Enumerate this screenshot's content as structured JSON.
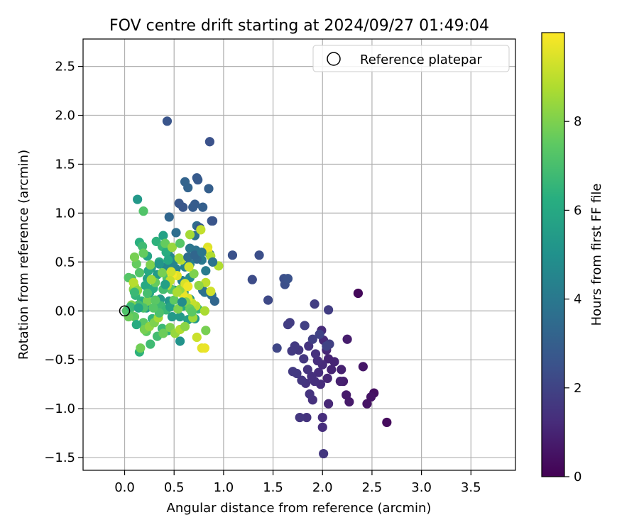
{
  "chart_data": {
    "type": "scatter",
    "title": "FOV centre drift starting at 2024/09/27 01:49:04",
    "xlabel": "Angular distance from reference (arcmin)",
    "ylabel": "Rotation from reference (arcmin)",
    "xlim": [
      -0.42,
      3.95
    ],
    "ylim": [
      -1.63,
      2.78
    ],
    "xticks": [
      0.0,
      0.5,
      1.0,
      1.5,
      2.0,
      2.5,
      3.0,
      3.5
    ],
    "xtick_labels": [
      "0.0",
      "0.5",
      "1.0",
      "1.5",
      "2.0",
      "2.5",
      "3.0",
      "3.5"
    ],
    "yticks": [
      -1.5,
      -1.0,
      -0.5,
      0.0,
      0.5,
      1.0,
      1.5,
      2.0,
      2.5
    ],
    "ytick_labels": [
      "−1.5",
      "−1.0",
      "−0.5",
      "0.0",
      "0.5",
      "1.0",
      "1.5",
      "2.0",
      "2.5"
    ],
    "grid": true,
    "legend": {
      "placement": "top-right",
      "entries": [
        "Reference platepar"
      ]
    },
    "reference_point": {
      "x": 0.0,
      "y": 0.0
    },
    "colorbar": {
      "label": "Hours from first FF file",
      "colormap": "viridis",
      "range": [
        0,
        10
      ],
      "ticks": [
        0,
        2,
        4,
        6,
        8
      ],
      "tick_labels": [
        "0",
        "2",
        "4",
        "6",
        "8"
      ]
    },
    "points": [
      [
        2.36,
        0.18,
        0.2
      ],
      [
        2.65,
        -1.14,
        0.3
      ],
      [
        2.52,
        -0.84,
        0.4
      ],
      [
        2.49,
        -0.88,
        0.5
      ],
      [
        2.45,
        -0.95,
        0.5
      ],
      [
        2.41,
        -0.57,
        0.6
      ],
      [
        2.27,
        -0.93,
        0.7
      ],
      [
        2.24,
        -0.86,
        0.7
      ],
      [
        2.25,
        -0.29,
        0.8
      ],
      [
        2.21,
        -0.72,
        0.8
      ],
      [
        2.18,
        -0.72,
        0.9
      ],
      [
        2.19,
        -0.6,
        0.9
      ],
      [
        2.12,
        -0.52,
        1.0
      ],
      [
        2.09,
        -0.6,
        1.0
      ],
      [
        2.06,
        -0.49,
        1.0
      ],
      [
        2.05,
        -0.69,
        1.1
      ],
      [
        2.06,
        -0.95,
        1.1
      ],
      [
        2.04,
        -0.4,
        1.1
      ],
      [
        2.01,
        -0.3,
        1.2
      ],
      [
        2.0,
        -0.55,
        1.2
      ],
      [
        1.99,
        -0.2,
        1.2
      ],
      [
        2.0,
        -1.19,
        1.3
      ],
      [
        2.0,
        -1.09,
        1.3
      ],
      [
        1.98,
        -0.75,
        1.3
      ],
      [
        1.96,
        -0.63,
        1.3
      ],
      [
        1.95,
        -0.51,
        1.3
      ],
      [
        1.93,
        -0.44,
        1.4
      ],
      [
        1.92,
        -0.72,
        1.4
      ],
      [
        1.9,
        -0.91,
        1.4
      ],
      [
        1.89,
        -0.67,
        1.4
      ],
      [
        1.87,
        -0.85,
        1.5
      ],
      [
        1.86,
        -0.36,
        1.5
      ],
      [
        1.85,
        -0.6,
        1.5
      ],
      [
        1.84,
        -1.09,
        1.5
      ],
      [
        1.83,
        -0.74,
        1.5
      ],
      [
        1.81,
        -0.49,
        1.6
      ],
      [
        1.79,
        -0.71,
        1.6
      ],
      [
        1.77,
        -1.09,
        1.6
      ],
      [
        1.76,
        -0.4,
        1.6
      ],
      [
        1.74,
        -0.64,
        1.7
      ],
      [
        1.72,
        -0.36,
        1.7
      ],
      [
        1.7,
        -0.62,
        1.7
      ],
      [
        1.69,
        -0.41,
        1.7
      ],
      [
        1.67,
        -0.12,
        1.8
      ],
      [
        1.65,
        -0.14,
        1.8
      ],
      [
        1.92,
        0.07,
        1.8
      ],
      [
        2.06,
        0.01,
        1.8
      ],
      [
        2.01,
        -1.46,
        1.6
      ],
      [
        2.07,
        -0.34,
        1.9
      ],
      [
        1.9,
        -0.29,
        1.9
      ],
      [
        1.82,
        -0.15,
        1.9
      ],
      [
        1.97,
        -0.24,
        2.0
      ],
      [
        2.04,
        -0.36,
        2.0
      ],
      [
        1.54,
        -0.38,
        2.1
      ],
      [
        1.45,
        0.11,
        2.2
      ],
      [
        1.29,
        0.32,
        2.3
      ],
      [
        1.36,
        0.57,
        2.4
      ],
      [
        1.09,
        0.57,
        2.5
      ],
      [
        1.61,
        0.33,
        2.4
      ],
      [
        1.62,
        0.27,
        2.4
      ],
      [
        1.65,
        0.33,
        2.5
      ],
      [
        0.43,
        1.94,
        2.6
      ],
      [
        0.86,
        1.73,
        2.5
      ],
      [
        0.73,
        1.36,
        2.8
      ],
      [
        0.74,
        1.34,
        2.8
      ],
      [
        0.61,
        1.32,
        3.2
      ],
      [
        0.64,
        1.26,
        3.2
      ],
      [
        0.85,
        1.25,
        3.0
      ],
      [
        0.55,
        1.1,
        2.7
      ],
      [
        0.59,
        1.06,
        2.7
      ],
      [
        0.71,
        1.09,
        2.9
      ],
      [
        0.69,
        1.06,
        2.9
      ],
      [
        0.79,
        1.06,
        3.0
      ],
      [
        0.45,
        0.96,
        3.3
      ],
      [
        0.88,
        0.92,
        2.6
      ],
      [
        0.89,
        0.92,
        2.6
      ],
      [
        0.73,
        0.87,
        3.5
      ],
      [
        0.76,
        0.85,
        2.8
      ],
      [
        0.52,
        0.8,
        3.6
      ],
      [
        0.71,
        0.77,
        3.7
      ],
      [
        0.66,
        0.64,
        3.9
      ],
      [
        0.72,
        0.62,
        3.8
      ],
      [
        0.86,
        0.58,
        3.9
      ],
      [
        0.78,
        0.52,
        4.0
      ],
      [
        0.73,
        0.53,
        3.4
      ],
      [
        0.82,
        0.41,
        4.1
      ],
      [
        0.66,
        0.48,
        4.2
      ],
      [
        0.61,
        0.45,
        4.4
      ],
      [
        0.52,
        0.43,
        4.3
      ],
      [
        0.46,
        0.55,
        4.6
      ],
      [
        0.45,
        0.63,
        4.7
      ],
      [
        0.49,
        0.49,
        4.5
      ],
      [
        0.42,
        0.45,
        4.6
      ],
      [
        0.58,
        0.31,
        4.3
      ],
      [
        0.66,
        0.34,
        4.8
      ],
      [
        0.81,
        0.19,
        3.9
      ],
      [
        0.88,
        0.16,
        3.6
      ],
      [
        0.79,
        0.21,
        3.7
      ],
      [
        0.6,
        0.19,
        4.9
      ],
      [
        0.66,
        0.12,
        5.0
      ],
      [
        0.51,
        0.21,
        5.1
      ],
      [
        0.45,
        0.1,
        5.2
      ],
      [
        0.36,
        0.12,
        5.3
      ],
      [
        0.33,
        0.37,
        5.4
      ],
      [
        0.27,
        0.44,
        5.5
      ],
      [
        0.23,
        0.33,
        5.6
      ],
      [
        0.13,
        1.14,
        5.3
      ],
      [
        0.19,
        1.02,
        7.2
      ],
      [
        0.15,
        0.7,
        6.3
      ],
      [
        0.18,
        0.66,
        6.8
      ],
      [
        0.23,
        0.56,
        5.8
      ],
      [
        0.32,
        0.71,
        6.4
      ],
      [
        0.39,
        0.77,
        5.7
      ],
      [
        0.38,
        0.66,
        6.6
      ],
      [
        0.42,
        0.6,
        6.2
      ],
      [
        0.44,
        0.52,
        6.0
      ],
      [
        0.35,
        0.5,
        6.1
      ],
      [
        0.12,
        0.48,
        7.6
      ],
      [
        0.1,
        0.55,
        7.9
      ],
      [
        0.21,
        0.26,
        6.0
      ],
      [
        0.25,
        0.18,
        5.8
      ],
      [
        0.29,
        0.23,
        6.2
      ],
      [
        0.17,
        0.1,
        6.4
      ],
      [
        0.11,
        0.16,
        6.5
      ],
      [
        0.07,
        0.33,
        7.0
      ],
      [
        0.04,
        0.34,
        7.3
      ],
      [
        0.19,
        0.08,
        5.9
      ],
      [
        0.22,
        0.03,
        5.5
      ],
      [
        0.24,
        0.41,
        6.0
      ],
      [
        0.33,
        0.07,
        6.6
      ],
      [
        0.37,
        0.05,
        6.8
      ],
      [
        0.42,
        0.01,
        6.7
      ],
      [
        0.46,
        0.04,
        5.7
      ],
      [
        0.48,
        -0.06,
        5.4
      ],
      [
        0.56,
        -0.06,
        5.4
      ],
      [
        0.59,
        0.05,
        6.2
      ],
      [
        0.64,
        -0.09,
        5.6
      ],
      [
        0.71,
        -0.08,
        5.3
      ],
      [
        0.74,
        0.02,
        6.6
      ],
      [
        0.56,
        -0.31,
        5.1
      ],
      [
        0.44,
        -0.2,
        6.4
      ],
      [
        0.38,
        -0.18,
        6.7
      ],
      [
        0.33,
        -0.26,
        6.9
      ],
      [
        0.28,
        -0.08,
        6.5
      ],
      [
        0.22,
        -0.21,
        7.5
      ],
      [
        0.19,
        -0.12,
        7.4
      ],
      [
        0.15,
        -0.42,
        6.4
      ],
      [
        0.16,
        -0.38,
        7.8
      ],
      [
        0.26,
        -0.34,
        6.8
      ],
      [
        0.2,
        -0.19,
        7.9
      ],
      [
        0.25,
        -0.16,
        8.3
      ],
      [
        0.3,
        -0.12,
        8.0
      ],
      [
        0.34,
        -0.07,
        8.6
      ],
      [
        0.39,
        -0.23,
        7.7
      ],
      [
        0.46,
        -0.17,
        8.0
      ],
      [
        0.51,
        -0.23,
        8.4
      ],
      [
        0.56,
        -0.19,
        8.8
      ],
      [
        0.61,
        -0.16,
        8.2
      ],
      [
        0.69,
        -0.07,
        8.5
      ],
      [
        0.73,
        -0.27,
        9.2
      ],
      [
        0.78,
        -0.38,
        9.6
      ],
      [
        0.81,
        -0.38,
        9.7
      ],
      [
        0.82,
        -0.2,
        7.9
      ],
      [
        0.81,
        0.0,
        8.7
      ],
      [
        0.72,
        0.05,
        8.9
      ],
      [
        0.68,
        0.08,
        9.1
      ],
      [
        0.64,
        0.13,
        9.5
      ],
      [
        0.59,
        0.17,
        9.7
      ],
      [
        0.56,
        0.22,
        8.4
      ],
      [
        0.5,
        0.11,
        7.5
      ],
      [
        0.47,
        0.22,
        7.3
      ],
      [
        0.43,
        0.33,
        7.1
      ],
      [
        0.38,
        0.39,
        7.9
      ],
      [
        0.31,
        0.29,
        7.6
      ],
      [
        0.27,
        0.32,
        8.5
      ],
      [
        0.23,
        0.1,
        7.9
      ],
      [
        0.19,
        0.03,
        7.1
      ],
      [
        0.14,
        0.06,
        6.9
      ],
      [
        0.1,
        -0.06,
        7.5
      ],
      [
        0.07,
        0.06,
        8.0
      ],
      [
        0.05,
        0.01,
        7.3
      ],
      [
        0.04,
        -0.06,
        7.7
      ],
      [
        0.09,
        0.22,
        8.1
      ],
      [
        0.1,
        0.25,
        8.6
      ],
      [
        0.09,
        0.29,
        8.9
      ],
      [
        0.13,
        0.21,
        8.3
      ],
      [
        0.15,
        0.39,
        7.2
      ],
      [
        0.19,
        0.59,
        7.6
      ],
      [
        0.26,
        0.47,
        8.0
      ],
      [
        0.41,
        0.69,
        7.6
      ],
      [
        0.48,
        0.65,
        8.4
      ],
      [
        0.56,
        0.69,
        7.3
      ],
      [
        0.66,
        0.78,
        8.6
      ],
      [
        0.77,
        0.83,
        9.1
      ],
      [
        0.84,
        0.65,
        9.5
      ],
      [
        0.84,
        0.61,
        9.7
      ],
      [
        0.87,
        0.56,
        8.8
      ],
      [
        0.95,
        0.46,
        8.8
      ],
      [
        0.87,
        0.2,
        9.3
      ],
      [
        0.82,
        0.29,
        9.0
      ],
      [
        0.75,
        0.26,
        8.3
      ],
      [
        0.7,
        0.38,
        8.0
      ],
      [
        0.65,
        0.45,
        9.3
      ],
      [
        0.57,
        0.52,
        9.0
      ],
      [
        0.55,
        0.54,
        8.6
      ],
      [
        0.61,
        0.28,
        9.4
      ],
      [
        0.64,
        0.25,
        9.8
      ],
      [
        0.53,
        0.36,
        9.6
      ],
      [
        0.48,
        0.37,
        9.9
      ],
      [
        0.47,
        0.4,
        9.3
      ],
      [
        0.46,
        0.31,
        9.1
      ],
      [
        0.43,
        0.26,
        8.9
      ],
      [
        0.53,
        0.19,
        8.7
      ],
      [
        0.62,
        0.09,
        8.1
      ],
      [
        0.66,
        0.02,
        7.6
      ],
      [
        0.68,
        -0.01,
        7.4
      ],
      [
        0.54,
        0.02,
        8.0
      ],
      [
        0.31,
        0.11,
        7.4
      ],
      [
        0.35,
        -0.02,
        7.1
      ],
      [
        0.29,
        0.03,
        7.3
      ],
      [
        0.23,
        0.18,
        7.0
      ],
      [
        0.02,
        0.0,
        7.2
      ],
      [
        0.06,
        0.04,
        6.7
      ],
      [
        0.1,
        0.19,
        6.7
      ],
      [
        0.12,
        -0.14,
        6.1
      ],
      [
        0.14,
        0.03,
        5.9
      ],
      [
        0.39,
        0.22,
        6.9
      ],
      [
        0.64,
        0.55,
        3.5
      ],
      [
        0.71,
        0.57,
        3.3
      ],
      [
        0.78,
        0.6,
        3.9
      ],
      [
        0.89,
        0.5,
        3.8
      ],
      [
        0.91,
        0.1,
        3.3
      ],
      [
        0.58,
        0.09,
        4.8
      ],
      [
        0.35,
        0.48,
        5.2
      ],
      [
        0.41,
        0.27,
        5.6
      ]
    ]
  }
}
